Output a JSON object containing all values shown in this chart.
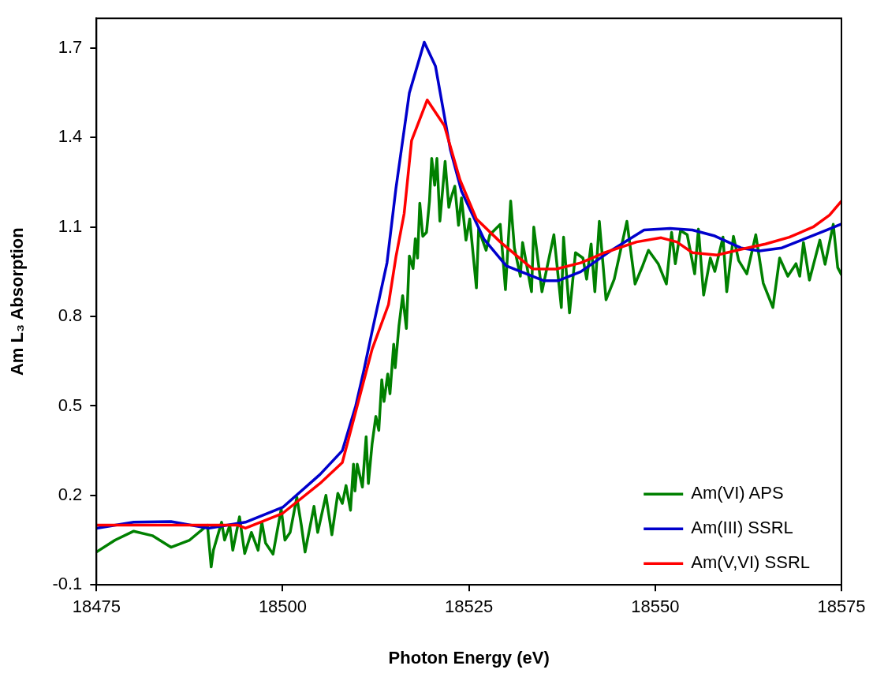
{
  "chart_data": {
    "type": "line",
    "xlabel": "Photon Energy (eV)",
    "ylabel": "Am L₃ Absorption",
    "xlim": [
      18475,
      18575
    ],
    "xticks": [
      18475,
      18500,
      18525,
      18550,
      18575
    ],
    "ylim": [
      -0.1,
      1.8
    ],
    "yticks": [
      -0.1,
      0.2,
      0.5,
      0.8,
      1.1,
      1.4,
      1.7
    ],
    "grid": false,
    "legend": "bottom right",
    "marker": "none",
    "line_style": "solid",
    "series": [
      {
        "name": "Am(VI) APS",
        "color": "#008000",
        "x": [
          18475,
          18477.5,
          18480,
          18482.5,
          18485,
          18487.5,
          18489.9,
          18490.4,
          18490.7,
          18491.8,
          18492.2,
          18492.9,
          18493.3,
          18494.2,
          18494.9,
          18495.8,
          18496.7,
          18497.2,
          18497.7,
          18498.7,
          18499.8,
          18500.3,
          18501,
          18501.9,
          18502.5,
          18503,
          18504.2,
          18504.7,
          18505.8,
          18506.6,
          18507.4,
          18508,
          18508.5,
          18509.1,
          18509.5,
          18509.7,
          18510,
          18510.7,
          18511.2,
          18511.5,
          18512,
          18512.5,
          18512.9,
          18513.3,
          18513.6,
          18514.1,
          18514.4,
          18514.9,
          18515.1,
          18515.6,
          18516.1,
          18516.6,
          18517,
          18517.5,
          18517.8,
          18518.1,
          18518.4,
          18518.8,
          18519.3,
          18519.7,
          18520,
          18520.4,
          18520.7,
          18521.1,
          18521.8,
          18522.3,
          18522.6,
          18523.1,
          18523.6,
          18524,
          18524.6,
          18525.1,
          18526,
          18526.3,
          18527.3,
          18527.8,
          18529.2,
          18529.9,
          18530.6,
          18531.1,
          18531.9,
          18532.2,
          18533.4,
          18533.7,
          18534.8,
          18536.4,
          18537.4,
          18537.7,
          18538.5,
          18539.3,
          18540.3,
          18540.8,
          18541.4,
          18541.9,
          18542.5,
          18543.4,
          18544.5,
          18546.2,
          18547.3,
          18548.3,
          18549.1,
          18550.4,
          18551.5,
          18552.2,
          18552.7,
          18553.4,
          18554.3,
          18555.3,
          18555.8,
          18556.5,
          18557.4,
          18558,
          18559.1,
          18559.6,
          18560.5,
          18561.2,
          18562.3,
          18563.5,
          18564.5,
          18565.8,
          18566.7,
          18567.8,
          18568.9,
          18569.4,
          18569.9,
          18570.7,
          18572.1,
          18572.8,
          18573.9,
          18574.5,
          18575
        ],
        "values": [
          0.01,
          0.05,
          0.08,
          0.065,
          0.026,
          0.05,
          0.1,
          -0.04,
          0.016,
          0.11,
          0.05,
          0.1,
          0.016,
          0.128,
          0.005,
          0.076,
          0.016,
          0.11,
          0.04,
          0.003,
          0.155,
          0.05,
          0.076,
          0.194,
          0.1,
          0.01,
          0.163,
          0.076,
          0.2,
          0.068,
          0.207,
          0.173,
          0.233,
          0.15,
          0.305,
          0.215,
          0.305,
          0.228,
          0.397,
          0.24,
          0.373,
          0.465,
          0.418,
          0.588,
          0.515,
          0.607,
          0.541,
          0.707,
          0.628,
          0.767,
          0.87,
          0.76,
          1.003,
          0.961,
          1.061,
          0.996,
          1.18,
          1.069,
          1.082,
          1.187,
          1.33,
          1.24,
          1.33,
          1.12,
          1.32,
          1.166,
          1.198,
          1.237,
          1.106,
          1.198,
          1.056,
          1.127,
          0.896,
          1.093,
          1.022,
          1.074,
          1.109,
          0.89,
          1.187,
          1.03,
          0.935,
          1.048,
          0.883,
          1.1,
          0.883,
          1.074,
          0.83,
          1.066,
          0.812,
          1.014,
          0.996,
          0.925,
          1.043,
          0.883,
          1.119,
          0.856,
          0.925,
          1.119,
          0.909,
          0.969,
          1.022,
          0.977,
          0.909,
          1.082,
          0.977,
          1.088,
          1.074,
          0.943,
          1.093,
          0.872,
          0.996,
          0.951,
          1.066,
          0.883,
          1.069,
          0.988,
          0.943,
          1.074,
          0.912,
          0.83,
          0.996,
          0.935,
          0.977,
          0.935,
          1.048,
          0.922,
          1.056,
          0.975,
          1.109,
          0.964,
          0.94
        ]
      },
      {
        "name": "Am(III) SSRL",
        "color": "#0000cc",
        "x": [
          18475,
          18480,
          18485,
          18490,
          18495,
          18500,
          18505,
          18508,
          18509.8,
          18510.9,
          18512,
          18514,
          18515.2,
          18517,
          18519,
          18520.5,
          18522.5,
          18524,
          18527,
          18530,
          18535,
          18537,
          18540,
          18544,
          18548.5,
          18552,
          18555,
          18558,
          18561.5,
          18564,
          18567,
          18570,
          18573,
          18575
        ],
        "values": [
          0.09,
          0.11,
          0.112,
          0.09,
          0.11,
          0.16,
          0.27,
          0.35,
          0.5,
          0.62,
          0.75,
          0.98,
          1.23,
          1.55,
          1.72,
          1.64,
          1.36,
          1.22,
          1.06,
          0.97,
          0.92,
          0.92,
          0.95,
          1.02,
          1.09,
          1.095,
          1.09,
          1.07,
          1.03,
          1.02,
          1.03,
          1.06,
          1.09,
          1.11
        ]
      },
      {
        "name": "Am(V,VI) SSRL",
        "color": "#ff0000",
        "x": [
          18475,
          18480,
          18485,
          18490,
          18494,
          18495,
          18500,
          18505,
          18508,
          18512,
          18514.2,
          18515.2,
          18516.3,
          18517.3,
          18519.4,
          18521.7,
          18523.8,
          18526,
          18529.2,
          18533.5,
          18536.7,
          18540,
          18543.2,
          18547.5,
          18550.8,
          18552.9,
          18555,
          18558.3,
          18561.5,
          18564.8,
          18568,
          18571.2,
          18573.4,
          18575
        ],
        "values": [
          0.1,
          0.1,
          0.1,
          0.1,
          0.1,
          0.09,
          0.14,
          0.24,
          0.31,
          0.69,
          0.84,
          1.0,
          1.145,
          1.39,
          1.526,
          1.44,
          1.258,
          1.127,
          1.05,
          0.96,
          0.959,
          0.98,
          1.014,
          1.05,
          1.064,
          1.05,
          1.014,
          1.006,
          1.025,
          1.043,
          1.066,
          1.1,
          1.14,
          1.187
        ]
      }
    ]
  }
}
